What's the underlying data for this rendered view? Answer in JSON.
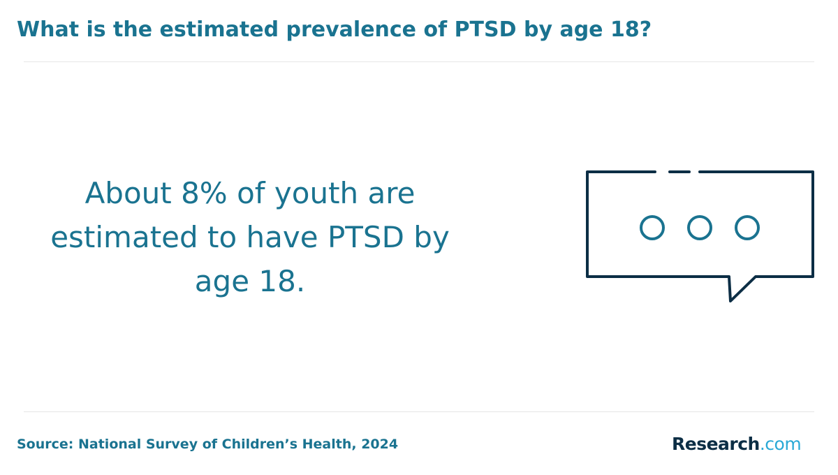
{
  "header": {
    "title": "What is the estimated prevalence of PTSD by age 18?"
  },
  "main": {
    "statement": "About 8% of youth are estimated to have PTSD by age 18.",
    "illustration_icon": "speech-bubble-ellipsis-icon"
  },
  "footer": {
    "source": "Source: National Survey of Children’s Health, 2024",
    "logo_main": "Research",
    "logo_tld": ".com"
  },
  "colors": {
    "title": "#1a7390",
    "statement": "#1a7390",
    "source": "#1a7390",
    "bubble_outline": "#0c2e45",
    "bubble_dots": "#1a7390",
    "logo_main": "#0c2e45",
    "logo_tld": "#2aa9d6",
    "divider": "#e6e6e6"
  }
}
